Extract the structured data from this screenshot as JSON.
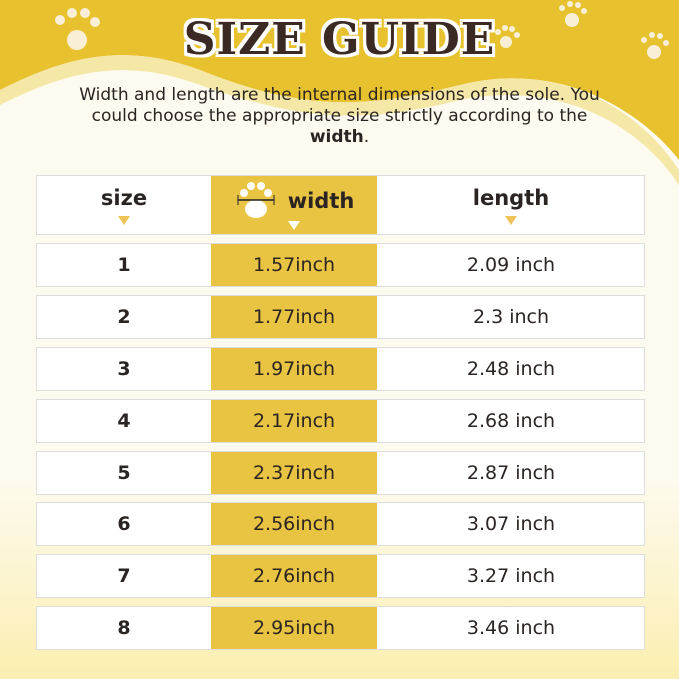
{
  "title": "SIZE GUIDE",
  "description": {
    "text": "Width and length are the internal dimensions of the sole. You could choose the appropriate size strictly according to the ",
    "bold": "width",
    "end": "."
  },
  "colors": {
    "accent": "#e9c443",
    "background": "#fdfbf0",
    "text": "#2a2422"
  },
  "table": {
    "headers": {
      "size": "size",
      "width": "width",
      "length": "length",
      "width_icon": "paw-width-icon"
    },
    "rows": [
      {
        "size": "1",
        "width": "1.57inch",
        "length": "2.09 inch"
      },
      {
        "size": "2",
        "width": "1.77inch",
        "length": "2.3 inch"
      },
      {
        "size": "3",
        "width": "1.97inch",
        "length": "2.48 inch"
      },
      {
        "size": "4",
        "width": "2.17inch",
        "length": "2.68 inch"
      },
      {
        "size": "5",
        "width": "2.37inch",
        "length": "2.87 inch"
      },
      {
        "size": "6",
        "width": "2.56inch",
        "length": "3.07 inch"
      },
      {
        "size": "7",
        "width": "2.76inch",
        "length": "3.27 inch"
      },
      {
        "size": "8",
        "width": "2.95inch",
        "length": "3.46 inch"
      }
    ]
  }
}
